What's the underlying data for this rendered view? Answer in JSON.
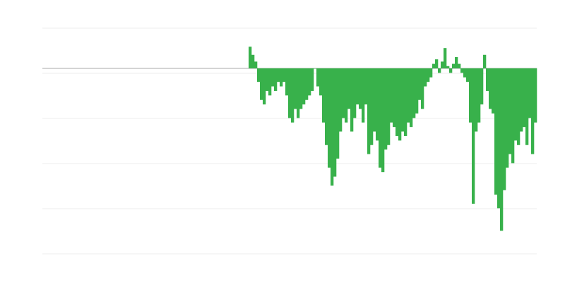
{
  "chart_data": {
    "type": "bar",
    "title": "",
    "xlabel": "",
    "ylabel": "",
    "ylim": [
      -41.1,
      8.9
    ],
    "grid_values": [
      8.9,
      -1.1,
      -11.1,
      -21.1,
      -31.1,
      -41.1
    ],
    "grid": true,
    "legend": "none",
    "bar_color": "#38b14b",
    "zero_line_color": "#aaaaaa",
    "grid_color": "#eeeeee",
    "values": [
      null,
      null,
      null,
      null,
      null,
      null,
      null,
      null,
      null,
      null,
      null,
      null,
      null,
      null,
      null,
      null,
      null,
      null,
      null,
      null,
      null,
      null,
      null,
      null,
      null,
      null,
      null,
      null,
      null,
      null,
      null,
      null,
      null,
      null,
      null,
      null,
      null,
      null,
      null,
      null,
      null,
      null,
      null,
      null,
      null,
      null,
      null,
      null,
      null,
      null,
      null,
      null,
      null,
      null,
      null,
      null,
      null,
      null,
      null,
      null,
      null,
      null,
      null,
      null,
      null,
      null,
      null,
      null,
      null,
      null,
      null,
      null,
      null,
      4.8,
      3,
      1.5,
      -3,
      -7,
      -8,
      -5,
      -6,
      -4,
      -5,
      -3,
      -4,
      -3,
      -6,
      -11,
      -12,
      -9,
      -11,
      -9,
      -8,
      -7,
      -6,
      -5,
      0,
      -4,
      -6,
      -12,
      -17,
      -22,
      -26,
      -24,
      -20,
      -14,
      -11,
      -12,
      -9,
      -14,
      -11,
      -8,
      -9,
      -12,
      -8,
      -19,
      -17,
      -14,
      -16,
      -22,
      -23,
      -18,
      -17,
      -12,
      -13,
      -15,
      -16,
      -14,
      -15,
      -12,
      -13,
      -11,
      -10,
      -7,
      -9,
      -4,
      -3,
      -2,
      1,
      2,
      -1,
      1.5,
      4.5,
      0.5,
      -1,
      1,
      2.5,
      1,
      -1,
      -2,
      -3,
      -12,
      -30,
      -14,
      -12,
      -8,
      3,
      -5,
      -9,
      -10,
      -28,
      -31,
      -36,
      -27,
      -22,
      -19,
      -21,
      -16,
      -17,
      -14,
      -13,
      -17,
      -11,
      -19,
      -12
    ]
  }
}
